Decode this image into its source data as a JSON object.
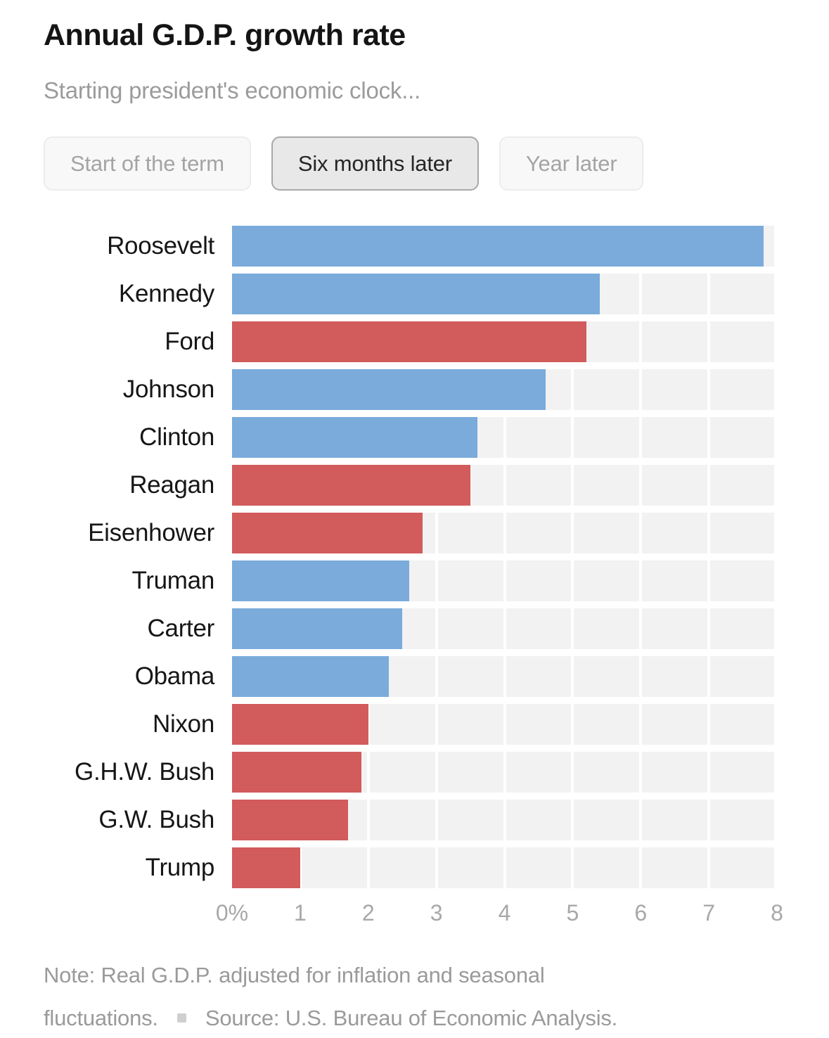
{
  "header": {
    "title": "Annual G.D.P. growth rate",
    "subtitle": "Starting president's economic clock..."
  },
  "toggle": {
    "options": [
      {
        "label": "Start of the term",
        "selected": false
      },
      {
        "label": "Six months later",
        "selected": true
      },
      {
        "label": "Year later",
        "selected": false
      }
    ]
  },
  "chart_data": {
    "type": "bar",
    "orientation": "horizontal",
    "title": "Annual G.D.P. growth rate",
    "subtitle": "Starting president's economic clock...",
    "active_view": "Six months later",
    "categories": [
      "Roosevelt",
      "Kennedy",
      "Ford",
      "Johnson",
      "Clinton",
      "Reagan",
      "Eisenhower",
      "Truman",
      "Carter",
      "Obama",
      "Nixon",
      "G.H.W. Bush",
      "G.W. Bush",
      "Trump"
    ],
    "values": [
      7.8,
      5.4,
      5.2,
      4.6,
      3.6,
      3.5,
      2.8,
      2.6,
      2.5,
      2.3,
      2.0,
      1.9,
      1.7,
      1.0
    ],
    "unit": "percent annual G.D.P. growth",
    "parties": [
      "D",
      "D",
      "R",
      "D",
      "D",
      "R",
      "R",
      "D",
      "D",
      "D",
      "R",
      "R",
      "R",
      "R"
    ],
    "colors": {
      "D": "#7aabdb",
      "R": "#d25b5b"
    },
    "plot_background": "#f2f2f3",
    "gridline_color": "#ffffff",
    "xlim": [
      0,
      8
    ],
    "x_ticks": [
      "0%",
      "1",
      "2",
      "3",
      "4",
      "5",
      "6",
      "7",
      "8"
    ],
    "grid": "vertical gridlines at each whole number, no legend"
  },
  "footer": {
    "note_line1": "Note: Real G.D.P. adjusted for inflation and seasonal",
    "note_line2": "fluctuations.",
    "source": "Source: U.S. Bureau of Economic Analysis."
  }
}
